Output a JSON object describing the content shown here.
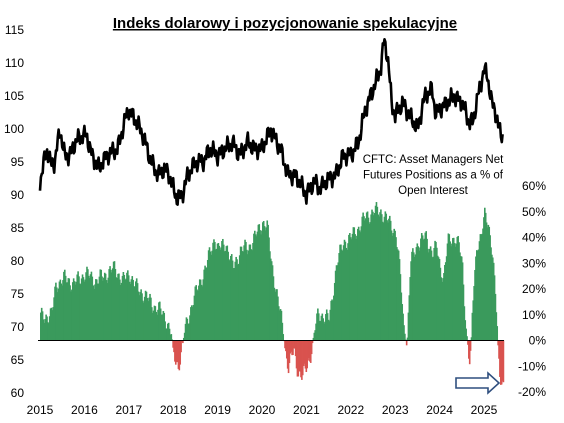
{
  "chart_data": {
    "type": "bar",
    "title": "Indeks dolarowy i pozycjonowanie spekulacyjne",
    "annotation": [
      "CFTC: Asset Managers Net",
      "Futures Positions as a % of",
      "Open Interest"
    ],
    "x_ticks": [
      "2015",
      "2016",
      "2017",
      "2018",
      "2019",
      "2020",
      "2021",
      "2022",
      "2023",
      "2024",
      "2025"
    ],
    "left_axis": {
      "ticks": [
        "60",
        "65",
        "70",
        "75",
        "80",
        "85",
        "90",
        "95",
        "100",
        "105",
        "110",
        "115"
      ],
      "range": [
        60,
        115
      ]
    },
    "right_axis": {
      "ticks": [
        "-20%",
        "-10%",
        "0%",
        "10%",
        "20%",
        "30%",
        "40%",
        "50%",
        "60%"
      ],
      "range": [
        -20,
        60
      ]
    },
    "colors": {
      "positive": "#3a9a5c",
      "negative": "#d9534f",
      "line": "#000000",
      "arrow": "#2f4f7f"
    },
    "line_series": {
      "name": "Dollar Index",
      "axis": "left",
      "points": [
        [
          2015.0,
          92
        ],
        [
          2015.15,
          97
        ],
        [
          2015.25,
          94.5
        ],
        [
          2015.33,
          95
        ],
        [
          2015.45,
          100
        ],
        [
          2015.55,
          96
        ],
        [
          2015.67,
          96
        ],
        [
          2015.8,
          98
        ],
        [
          2015.92,
          99
        ],
        [
          2016.05,
          99
        ],
        [
          2016.17,
          96
        ],
        [
          2016.33,
          94
        ],
        [
          2016.5,
          96
        ],
        [
          2016.75,
          97
        ],
        [
          2016.9,
          101
        ],
        [
          2017.0,
          103
        ],
        [
          2017.17,
          101
        ],
        [
          2017.33,
          99
        ],
        [
          2017.5,
          95
        ],
        [
          2017.67,
          93
        ],
        [
          2017.8,
          94
        ],
        [
          2017.92,
          93
        ],
        [
          2018.0,
          91
        ],
        [
          2018.08,
          89.5
        ],
        [
          2018.2,
          90
        ],
        [
          2018.33,
          93
        ],
        [
          2018.5,
          95
        ],
        [
          2018.67,
          95
        ],
        [
          2018.83,
          97
        ],
        [
          2019.0,
          96
        ],
        [
          2019.17,
          97
        ],
        [
          2019.33,
          98
        ],
        [
          2019.5,
          96
        ],
        [
          2019.67,
          98
        ],
        [
          2019.83,
          97
        ],
        [
          2020.0,
          97
        ],
        [
          2020.2,
          100
        ],
        [
          2020.25,
          99
        ],
        [
          2020.42,
          97
        ],
        [
          2020.58,
          93
        ],
        [
          2020.75,
          93
        ],
        [
          2020.92,
          91
        ],
        [
          2021.0,
          90
        ],
        [
          2021.17,
          92
        ],
        [
          2021.33,
          91
        ],
        [
          2021.5,
          92.5
        ],
        [
          2021.67,
          93
        ],
        [
          2021.83,
          96
        ],
        [
          2022.0,
          96
        ],
        [
          2022.17,
          98
        ],
        [
          2022.33,
          103
        ],
        [
          2022.5,
          106
        ],
        [
          2022.67,
          109
        ],
        [
          2022.75,
          113.5
        ],
        [
          2022.83,
          111
        ],
        [
          2022.92,
          104
        ],
        [
          2023.0,
          102
        ],
        [
          2023.17,
          104
        ],
        [
          2023.33,
          102
        ],
        [
          2023.5,
          100
        ],
        [
          2023.67,
          105
        ],
        [
          2023.83,
          106
        ],
        [
          2023.92,
          102
        ],
        [
          2024.0,
          103
        ],
        [
          2024.17,
          104
        ],
        [
          2024.33,
          105
        ],
        [
          2024.5,
          104
        ],
        [
          2024.67,
          101
        ],
        [
          2024.75,
          101
        ],
        [
          2024.83,
          104
        ],
        [
          2025.0,
          109
        ],
        [
          2025.08,
          108
        ],
        [
          2025.17,
          104
        ],
        [
          2025.25,
          103
        ],
        [
          2025.33,
          100
        ],
        [
          2025.42,
          99
        ]
      ]
    },
    "bar_series": {
      "name": "CFTC: Asset Managers Net Futures Positions as a % of Open Interest",
      "axis": "right",
      "anchors": [
        [
          2015.0,
          9
        ],
        [
          2015.25,
          10
        ],
        [
          2015.35,
          22
        ],
        [
          2015.55,
          24
        ],
        [
          2015.75,
          22
        ],
        [
          2016.0,
          26
        ],
        [
          2016.25,
          23
        ],
        [
          2016.5,
          26
        ],
        [
          2016.67,
          28
        ],
        [
          2016.85,
          23
        ],
        [
          2017.0,
          26
        ],
        [
          2017.17,
          20
        ],
        [
          2017.33,
          18
        ],
        [
          2017.5,
          14
        ],
        [
          2017.67,
          12
        ],
        [
          2017.83,
          8
        ],
        [
          2017.95,
          2
        ],
        [
          2018.0,
          -6
        ],
        [
          2018.1,
          -10
        ],
        [
          2018.17,
          -4
        ],
        [
          2018.25,
          4
        ],
        [
          2018.42,
          15
        ],
        [
          2018.58,
          22
        ],
        [
          2018.75,
          30
        ],
        [
          2018.92,
          40
        ],
        [
          2019.0,
          35
        ],
        [
          2019.17,
          38
        ],
        [
          2019.33,
          28
        ],
        [
          2019.5,
          35
        ],
        [
          2019.67,
          36
        ],
        [
          2019.75,
          38
        ],
        [
          2019.83,
          40
        ],
        [
          2020.0,
          46
        ],
        [
          2020.1,
          44
        ],
        [
          2020.2,
          30
        ],
        [
          2020.3,
          20
        ],
        [
          2020.42,
          8
        ],
        [
          2020.5,
          -3
        ],
        [
          2020.58,
          -10
        ],
        [
          2020.7,
          -4
        ],
        [
          2020.8,
          -12
        ],
        [
          2020.9,
          -14
        ],
        [
          2021.0,
          -10
        ],
        [
          2021.08,
          -5
        ],
        [
          2021.17,
          4
        ],
        [
          2021.25,
          10
        ],
        [
          2021.33,
          10
        ],
        [
          2021.5,
          8
        ],
        [
          2021.67,
          30
        ],
        [
          2021.83,
          38
        ],
        [
          2022.0,
          40
        ],
        [
          2022.17,
          44
        ],
        [
          2022.33,
          48
        ],
        [
          2022.5,
          50
        ],
        [
          2022.67,
          50
        ],
        [
          2022.83,
          46
        ],
        [
          2023.0,
          42
        ],
        [
          2023.1,
          25
        ],
        [
          2023.17,
          6
        ],
        [
          2023.25,
          -3
        ],
        [
          2023.33,
          30
        ],
        [
          2023.5,
          38
        ],
        [
          2023.67,
          40
        ],
        [
          2023.83,
          34
        ],
        [
          2023.92,
          36
        ],
        [
          2024.0,
          28
        ],
        [
          2024.08,
          25
        ],
        [
          2024.17,
          38
        ],
        [
          2024.33,
          40
        ],
        [
          2024.42,
          37
        ],
        [
          2024.5,
          28
        ],
        [
          2024.58,
          5
        ],
        [
          2024.67,
          -10
        ],
        [
          2024.75,
          20
        ],
        [
          2024.83,
          38
        ],
        [
          2024.92,
          40
        ],
        [
          2025.0,
          48
        ],
        [
          2025.08,
          46
        ],
        [
          2025.17,
          35
        ],
        [
          2025.25,
          15
        ],
        [
          2025.33,
          -12
        ],
        [
          2025.42,
          -17
        ]
      ]
    }
  }
}
